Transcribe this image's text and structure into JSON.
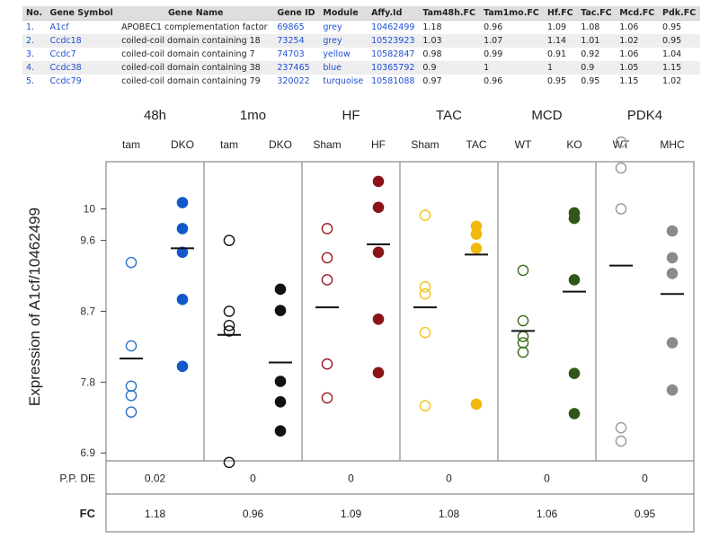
{
  "table": {
    "headers": [
      "No.",
      "Gene Symbol",
      "Gene Name",
      "Gene ID",
      "Module",
      "Affy.Id",
      "Tam48h.FC",
      "Tam1mo.FC",
      "Hf.FC",
      "Tac.FC",
      "Mcd.FC",
      "Pdk.FC"
    ],
    "rows": [
      [
        "1.",
        "A1cf",
        "APOBEC1 complementation factor",
        "69865",
        "grey",
        "10462499",
        "1.18",
        "0.96",
        "1.09",
        "1.08",
        "1.06",
        "0.95"
      ],
      [
        "2.",
        "Ccdc18",
        "coiled-coil domain containing 18",
        "73254",
        "grey",
        "10523923",
        "1.03",
        "1.07",
        "1.14",
        "1.01",
        "1.02",
        "0.95"
      ],
      [
        "3.",
        "Ccdc7",
        "coiled-coil domain containing 7",
        "74703",
        "yellow",
        "10582847",
        "0.98",
        "0.99",
        "0.91",
        "0.92",
        "1.06",
        "1.04"
      ],
      [
        "4.",
        "Ccdc38",
        "coiled-coil domain containing 38",
        "237465",
        "blue",
        "10365792",
        "0.9",
        "1",
        "1",
        "0.9",
        "1.05",
        "1.15"
      ],
      [
        "5.",
        "Ccdc79",
        "coiled-coil domain containing 79",
        "320022",
        "turquoise",
        "10581088",
        "0.97",
        "0.96",
        "0.95",
        "0.95",
        "1.15",
        "1.02"
      ]
    ]
  },
  "chart_data": {
    "type": "scatter",
    "ylabel": "Expression of A1cf/10462499",
    "ylim": [
      6.8,
      10.6
    ],
    "yticks": [
      6.9,
      7.8,
      8.7,
      9.6,
      10
    ],
    "row_labels": {
      "ppde": "P.P. DE",
      "fc": "FC"
    },
    "panels": [
      {
        "name": "48h",
        "groups": [
          {
            "label": "tam",
            "color": "#2a74c9",
            "filled": false,
            "points": [
              9.32,
              8.26,
              7.75,
              7.63,
              7.42
            ],
            "mean": 8.1
          },
          {
            "label": "DKO",
            "color": "#1358c8",
            "filled": true,
            "points": [
              10.08,
              9.75,
              9.45,
              8.85,
              8.0
            ],
            "mean": 9.5
          }
        ],
        "ppde": "0.02",
        "fc": "1.18"
      },
      {
        "name": "1mo",
        "groups": [
          {
            "label": "tam",
            "color": "#111111",
            "filled": false,
            "points": [
              9.6,
              8.7,
              8.52,
              8.45,
              6.78
            ],
            "mean": 8.4
          },
          {
            "label": "DKO",
            "color": "#111111",
            "filled": true,
            "points": [
              8.98,
              8.71,
              7.81,
              7.55,
              7.18
            ],
            "mean": 8.05
          }
        ],
        "ppde": "0",
        "fc": "0.96"
      },
      {
        "name": "HF",
        "groups": [
          {
            "label": "Sham",
            "color": "#9b1b24",
            "filled": false,
            "points": [
              9.75,
              9.38,
              9.1,
              8.03,
              7.6
            ],
            "mean": 8.75
          },
          {
            "label": "HF",
            "color": "#8a1418",
            "filled": true,
            "points": [
              10.35,
              10.02,
              9.45,
              8.6,
              7.92
            ],
            "mean": 9.55
          }
        ],
        "ppde": "0",
        "fc": "1.09"
      },
      {
        "name": "TAC",
        "groups": [
          {
            "label": "Sham",
            "color": "#f0c419",
            "filled": false,
            "points": [
              9.92,
              9.01,
              8.92,
              8.43,
              7.5
            ],
            "mean": 8.75
          },
          {
            "label": "TAC",
            "color": "#f2b80c",
            "filled": true,
            "points": [
              9.78,
              9.68,
              9.5,
              7.52
            ],
            "mean": 9.42
          }
        ],
        "ppde": "0",
        "fc": "1.08"
      },
      {
        "name": "MCD",
        "groups": [
          {
            "label": "WT",
            "color": "#3b6a1b",
            "filled": false,
            "points": [
              9.22,
              8.58,
              8.38,
              8.3,
              8.18
            ],
            "mean": 8.45
          },
          {
            "label": "KO",
            "color": "#30561a",
            "filled": true,
            "points": [
              9.88,
              9.95,
              9.1,
              7.91,
              7.4
            ],
            "mean": 8.95
          }
        ],
        "ppde": "0",
        "fc": "1.06"
      },
      {
        "name": "PDK4",
        "groups": [
          {
            "label": "WT",
            "color": "#9a9a9a",
            "filled": false,
            "points": [
              10.85,
              10.52,
              10.0,
              7.22,
              7.05
            ],
            "mean": 9.28
          },
          {
            "label": "MHC",
            "color": "#8a8a8a",
            "filled": true,
            "points": [
              9.72,
              9.38,
              9.18,
              8.3,
              7.7
            ],
            "mean": 8.92
          }
        ],
        "ppde": "0",
        "fc": "0.95"
      }
    ]
  }
}
